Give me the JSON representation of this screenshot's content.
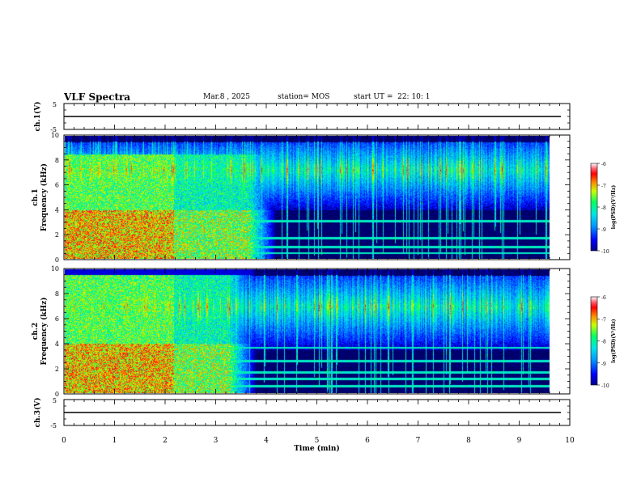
{
  "header": {
    "title": "VLF Spectra",
    "date": "Mar.8 , 2025",
    "station": "station= MOS",
    "start": "start UT =  22: 10: 1"
  },
  "chart_data": [
    {
      "type": "line",
      "panel": "ch1-waveform",
      "ylabel": "ch.1(V)",
      "ylim": [
        -5,
        5
      ],
      "yticks": [
        "5",
        "-5"
      ],
      "x": [
        0,
        10
      ],
      "values": [
        0,
        0
      ]
    },
    {
      "type": "heatmap",
      "panel": "ch1-spectrogram",
      "ylabel": "ch.1 Frequency (kHz)",
      "ylim": [
        0,
        10
      ],
      "yticks": [
        "0",
        "2",
        "4",
        "6",
        "8",
        "10"
      ],
      "xlim": [
        0,
        9.8
      ],
      "colorbar": {
        "label": "log(PSD)(V²/Hz)",
        "ticks": [
          "-6",
          "-7",
          "-8",
          "-9",
          "-10"
        ],
        "range": [
          -10,
          -6
        ]
      },
      "broadband_noise_end_min": 4.3,
      "broadband_noise_top_khz": 8.5,
      "chorus_band_khz": [
        5,
        9.5
      ],
      "narrowband_lines_khz": [
        0.5,
        1.0,
        1.7,
        3.1
      ]
    },
    {
      "type": "heatmap",
      "panel": "ch2-spectrogram",
      "ylabel": "ch.2 Frequency (kHz)",
      "ylim": [
        0,
        10
      ],
      "yticks": [
        "0",
        "2",
        "4",
        "6",
        "8",
        "10"
      ],
      "xlim": [
        0,
        9.8
      ],
      "colorbar": {
        "label": "log(PSD)(V²/Hz)",
        "ticks": [
          "-6",
          "-7",
          "-8",
          "-9",
          "-10"
        ],
        "range": [
          -10,
          -6
        ]
      },
      "broadband_noise_end_min": 3.9,
      "broadband_noise_top_khz": 10,
      "chorus_band_khz": [
        4.5,
        9.5
      ],
      "narrowband_lines_khz": [
        0.6,
        1.2,
        1.7,
        2.6,
        3.7
      ]
    },
    {
      "type": "line",
      "panel": "ch3-waveform",
      "ylabel": "ch.3(V)",
      "ylim": [
        -5,
        5
      ],
      "yticks": [
        "5",
        "-5"
      ],
      "x": [
        0,
        10
      ],
      "values": [
        0,
        0
      ]
    }
  ],
  "xaxis": {
    "label": "Time (min)",
    "xlim": [
      0,
      10
    ],
    "ticks": [
      "0",
      "1",
      "2",
      "3",
      "4",
      "5",
      "6",
      "7",
      "8",
      "9",
      "10"
    ]
  }
}
